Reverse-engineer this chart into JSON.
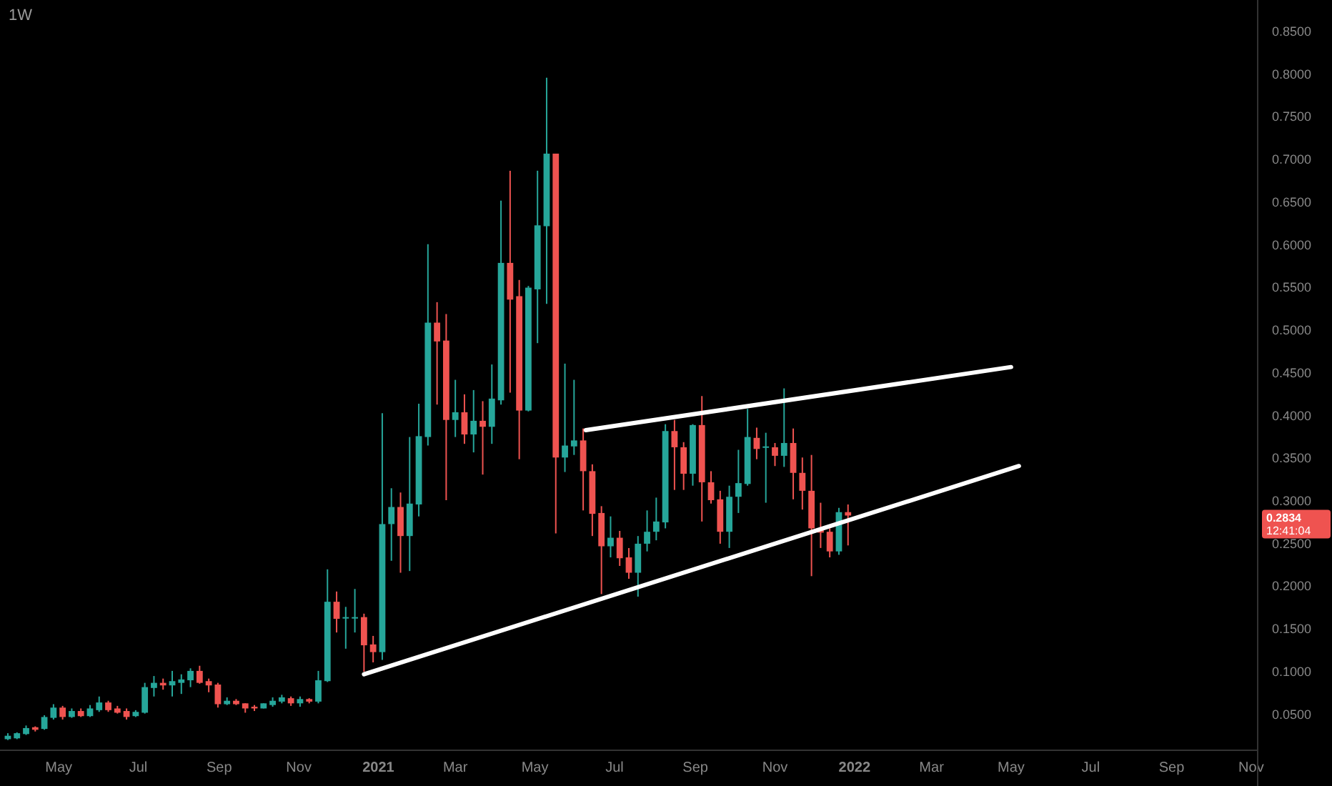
{
  "chart_data": {
    "type": "candlestick",
    "title": "1W",
    "x": [
      "2020-03-23",
      "2020-03-30",
      "2020-04-06",
      "2020-04-13",
      "2020-04-20",
      "2020-04-27",
      "2020-05-04",
      "2020-05-11",
      "2020-05-18",
      "2020-05-25",
      "2020-06-01",
      "2020-06-08",
      "2020-06-15",
      "2020-06-22",
      "2020-06-29",
      "2020-07-06",
      "2020-07-13",
      "2020-07-20",
      "2020-07-27",
      "2020-08-03",
      "2020-08-10",
      "2020-08-17",
      "2020-08-24",
      "2020-08-31",
      "2020-09-07",
      "2020-09-14",
      "2020-09-21",
      "2020-09-28",
      "2020-10-05",
      "2020-10-12",
      "2020-10-19",
      "2020-10-26",
      "2020-11-02",
      "2020-11-09",
      "2020-11-16",
      "2020-11-23",
      "2020-11-30",
      "2020-12-07",
      "2020-12-14",
      "2020-12-21",
      "2020-12-28",
      "2021-01-04",
      "2021-01-11",
      "2021-01-18",
      "2021-01-25",
      "2021-02-01",
      "2021-02-08",
      "2021-02-15",
      "2021-02-22",
      "2021-03-01",
      "2021-03-08",
      "2021-03-15",
      "2021-03-22",
      "2021-03-29",
      "2021-04-05",
      "2021-04-12",
      "2021-04-19",
      "2021-04-26",
      "2021-05-03",
      "2021-05-10",
      "2021-05-17",
      "2021-05-24",
      "2021-05-31",
      "2021-06-07",
      "2021-06-14",
      "2021-06-21",
      "2021-06-28",
      "2021-07-05",
      "2021-07-12",
      "2021-07-19",
      "2021-07-26",
      "2021-08-02",
      "2021-08-09",
      "2021-08-16",
      "2021-08-23",
      "2021-08-30",
      "2021-09-06",
      "2021-09-13",
      "2021-09-20",
      "2021-09-27",
      "2021-10-04",
      "2021-10-11",
      "2021-10-18",
      "2021-10-25",
      "2021-11-01",
      "2021-11-08",
      "2021-11-15",
      "2021-11-22",
      "2021-11-29",
      "2021-12-06",
      "2021-12-13",
      "2021-12-20",
      "2021-12-27"
    ],
    "ohlc": [
      [
        0.021,
        0.028,
        0.02,
        0.025
      ],
      [
        0.022,
        0.029,
        0.021,
        0.028
      ],
      [
        0.027,
        0.037,
        0.026,
        0.034
      ],
      [
        0.035,
        0.036,
        0.03,
        0.032
      ],
      [
        0.033,
        0.049,
        0.032,
        0.047
      ],
      [
        0.046,
        0.062,
        0.044,
        0.058
      ],
      [
        0.058,
        0.06,
        0.044,
        0.047
      ],
      [
        0.047,
        0.057,
        0.046,
        0.054
      ],
      [
        0.054,
        0.057,
        0.047,
        0.048
      ],
      [
        0.048,
        0.061,
        0.047,
        0.057
      ],
      [
        0.055,
        0.071,
        0.053,
        0.064
      ],
      [
        0.064,
        0.066,
        0.053,
        0.055
      ],
      [
        0.057,
        0.06,
        0.051,
        0.052
      ],
      [
        0.054,
        0.057,
        0.044,
        0.047
      ],
      [
        0.048,
        0.055,
        0.047,
        0.053
      ],
      [
        0.052,
        0.087,
        0.051,
        0.082
      ],
      [
        0.081,
        0.095,
        0.071,
        0.087
      ],
      [
        0.087,
        0.092,
        0.079,
        0.084
      ],
      [
        0.084,
        0.101,
        0.071,
        0.089
      ],
      [
        0.087,
        0.097,
        0.074,
        0.091
      ],
      [
        0.09,
        0.104,
        0.082,
        0.101
      ],
      [
        0.101,
        0.107,
        0.086,
        0.087
      ],
      [
        0.089,
        0.092,
        0.076,
        0.084
      ],
      [
        0.085,
        0.087,
        0.058,
        0.062
      ],
      [
        0.062,
        0.07,
        0.061,
        0.066
      ],
      [
        0.066,
        0.068,
        0.061,
        0.062
      ],
      [
        0.063,
        0.063,
        0.052,
        0.057
      ],
      [
        0.059,
        0.061,
        0.054,
        0.057
      ],
      [
        0.057,
        0.063,
        0.057,
        0.063
      ],
      [
        0.061,
        0.07,
        0.059,
        0.066
      ],
      [
        0.065,
        0.073,
        0.063,
        0.07
      ],
      [
        0.069,
        0.071,
        0.06,
        0.063
      ],
      [
        0.063,
        0.071,
        0.059,
        0.068
      ],
      [
        0.068,
        0.069,
        0.063,
        0.065
      ],
      [
        0.065,
        0.101,
        0.063,
        0.09
      ],
      [
        0.089,
        0.22,
        0.088,
        0.182
      ],
      [
        0.182,
        0.194,
        0.146,
        0.162
      ],
      [
        0.163,
        0.176,
        0.127,
        0.164
      ],
      [
        0.163,
        0.197,
        0.146,
        0.164
      ],
      [
        0.164,
        0.168,
        0.1,
        0.131
      ],
      [
        0.132,
        0.142,
        0.111,
        0.123
      ],
      [
        0.123,
        0.403,
        0.114,
        0.273
      ],
      [
        0.273,
        0.315,
        0.23,
        0.293
      ],
      [
        0.293,
        0.31,
        0.216,
        0.259
      ],
      [
        0.259,
        0.375,
        0.218,
        0.297
      ],
      [
        0.296,
        0.414,
        0.282,
        0.376
      ],
      [
        0.375,
        0.601,
        0.365,
        0.509
      ],
      [
        0.509,
        0.533,
        0.413,
        0.487
      ],
      [
        0.488,
        0.519,
        0.301,
        0.395
      ],
      [
        0.395,
        0.442,
        0.375,
        0.404
      ],
      [
        0.404,
        0.425,
        0.367,
        0.378
      ],
      [
        0.378,
        0.43,
        0.357,
        0.394
      ],
      [
        0.394,
        0.417,
        0.331,
        0.387
      ],
      [
        0.387,
        0.46,
        0.367,
        0.42
      ],
      [
        0.418,
        0.652,
        0.413,
        0.579
      ],
      [
        0.579,
        0.687,
        0.427,
        0.536
      ],
      [
        0.54,
        0.559,
        0.349,
        0.406
      ],
      [
        0.406,
        0.552,
        0.405,
        0.55
      ],
      [
        0.548,
        0.687,
        0.485,
        0.623
      ],
      [
        0.622,
        0.796,
        0.531,
        0.707
      ],
      [
        0.707,
        0.707,
        0.262,
        0.351
      ],
      [
        0.351,
        0.461,
        0.334,
        0.365
      ],
      [
        0.364,
        0.442,
        0.354,
        0.371
      ],
      [
        0.371,
        0.385,
        0.289,
        0.335
      ],
      [
        0.335,
        0.343,
        0.259,
        0.285
      ],
      [
        0.286,
        0.294,
        0.191,
        0.247
      ],
      [
        0.247,
        0.282,
        0.234,
        0.257
      ],
      [
        0.257,
        0.265,
        0.224,
        0.233
      ],
      [
        0.234,
        0.245,
        0.209,
        0.216
      ],
      [
        0.216,
        0.259,
        0.188,
        0.25
      ],
      [
        0.25,
        0.289,
        0.241,
        0.264
      ],
      [
        0.264,
        0.304,
        0.254,
        0.276
      ],
      [
        0.275,
        0.39,
        0.268,
        0.382
      ],
      [
        0.382,
        0.395,
        0.313,
        0.363
      ],
      [
        0.363,
        0.369,
        0.313,
        0.332
      ],
      [
        0.332,
        0.39,
        0.318,
        0.389
      ],
      [
        0.389,
        0.423,
        0.276,
        0.322
      ],
      [
        0.322,
        0.335,
        0.297,
        0.301
      ],
      [
        0.302,
        0.312,
        0.25,
        0.264
      ],
      [
        0.264,
        0.318,
        0.245,
        0.305
      ],
      [
        0.305,
        0.36,
        0.286,
        0.321
      ],
      [
        0.32,
        0.408,
        0.318,
        0.375
      ],
      [
        0.374,
        0.386,
        0.349,
        0.361
      ],
      [
        0.363,
        0.38,
        0.298,
        0.364
      ],
      [
        0.363,
        0.368,
        0.341,
        0.353
      ],
      [
        0.353,
        0.432,
        0.34,
        0.368
      ],
      [
        0.368,
        0.385,
        0.302,
        0.333
      ],
      [
        0.333,
        0.351,
        0.29,
        0.312
      ],
      [
        0.312,
        0.354,
        0.212,
        0.268
      ],
      [
        0.268,
        0.298,
        0.245,
        0.263
      ],
      [
        0.264,
        0.268,
        0.234,
        0.241
      ],
      [
        0.241,
        0.292,
        0.237,
        0.287
      ],
      [
        0.287,
        0.296,
        0.248,
        0.283
      ]
    ],
    "colors": [
      "#26a69a",
      "#26a69a",
      "#26a69a",
      "#ef5350",
      "#26a69a",
      "#26a69a",
      "#ef5350",
      "#26a69a",
      "#ef5350",
      "#26a69a",
      "#26a69a",
      "#ef5350",
      "#ef5350",
      "#ef5350",
      "#26a69a",
      "#26a69a",
      "#26a69a",
      "#ef5350",
      "#26a69a",
      "#26a69a",
      "#26a69a",
      "#ef5350",
      "#ef5350",
      "#ef5350",
      "#26a69a",
      "#ef5350",
      "#ef5350",
      "#ef5350",
      "#26a69a",
      "#26a69a",
      "#26a69a",
      "#ef5350",
      "#26a69a",
      "#ef5350",
      "#26a69a",
      "#26a69a",
      "#ef5350",
      "#26a69a",
      "#26a69a",
      "#ef5350",
      "#ef5350",
      "#26a69a",
      "#26a69a",
      "#ef5350",
      "#26a69a",
      "#26a69a",
      "#26a69a",
      "#ef5350",
      "#ef5350",
      "#26a69a",
      "#ef5350",
      "#26a69a",
      "#ef5350",
      "#26a69a",
      "#26a69a",
      "#ef5350",
      "#ef5350",
      "#26a69a",
      "#26a69a",
      "#26a69a",
      "#ef5350",
      "#26a69a",
      "#26a69a",
      "#ef5350",
      "#ef5350",
      "#ef5350",
      "#26a69a",
      "#ef5350",
      "#ef5350",
      "#26a69a",
      "#26a69a",
      "#26a69a",
      "#26a69a",
      "#ef5350",
      "#ef5350",
      "#26a69a",
      "#ef5350",
      "#ef5350",
      "#ef5350",
      "#26a69a",
      "#26a69a",
      "#26a69a",
      "#ef5350",
      "#26a69a",
      "#ef5350",
      "#26a69a",
      "#ef5350",
      "#ef5350",
      "#ef5350",
      "#ef5350",
      "#ef5350",
      "#26a69a",
      "#ef5350"
    ],
    "series": [
      {
        "type": "line",
        "x": [
          "2020-12-21",
          "2022-05-07"
        ],
        "values": [
          0.097,
          0.341
        ],
        "color": "#ffffff"
      },
      {
        "type": "line",
        "x": [
          "2021-06-09",
          "2022-05-01"
        ],
        "values": [
          0.383,
          0.457
        ],
        "color": "#ffffff"
      }
    ],
    "xlim": [
      "2020-03-17",
      "2022-11-06"
    ],
    "xticks": [
      {
        "value": "2020-05-01",
        "label": "May"
      },
      {
        "value": "2020-07-01",
        "label": "Jul"
      },
      {
        "value": "2020-09-01",
        "label": "Sep"
      },
      {
        "value": "2020-11-01",
        "label": "Nov"
      },
      {
        "value": "2021-01-01",
        "label": "2021"
      },
      {
        "value": "2021-03-01",
        "label": "Mar"
      },
      {
        "value": "2021-05-01",
        "label": "May"
      },
      {
        "value": "2021-07-01",
        "label": "Jul"
      },
      {
        "value": "2021-09-01",
        "label": "Sep"
      },
      {
        "value": "2021-11-01",
        "label": "Nov"
      },
      {
        "value": "2022-01-01",
        "label": "2022"
      },
      {
        "value": "2022-03-01",
        "label": "Mar"
      },
      {
        "value": "2022-05-01",
        "label": "May"
      },
      {
        "value": "2022-07-01",
        "label": "Jul"
      },
      {
        "value": "2022-09-01",
        "label": "Sep"
      },
      {
        "value": "2022-11-01",
        "label": "Nov"
      }
    ],
    "ylim": [
      0.008,
      0.887
    ],
    "yticks": [
      {
        "value": 0.05,
        "label": "0.0500"
      },
      {
        "value": 0.1,
        "label": "0.1000"
      },
      {
        "value": 0.15,
        "label": "0.1500"
      },
      {
        "value": 0.2,
        "label": "0.2000"
      },
      {
        "value": 0.25,
        "label": "0.2500"
      },
      {
        "value": 0.3,
        "label": "0.3000"
      },
      {
        "value": 0.35,
        "label": "0.3500"
      },
      {
        "value": 0.4,
        "label": "0.4000"
      },
      {
        "value": 0.45,
        "label": "0.4500"
      },
      {
        "value": 0.5,
        "label": "0.5000"
      },
      {
        "value": 0.55,
        "label": "0.5500"
      },
      {
        "value": 0.6,
        "label": "0.6000"
      },
      {
        "value": 0.65,
        "label": "0.6500"
      },
      {
        "value": 0.7,
        "label": "0.7000"
      },
      {
        "value": 0.75,
        "label": "0.7500"
      },
      {
        "value": 0.8,
        "label": "0.8000"
      },
      {
        "value": 0.85,
        "label": "0.8500"
      }
    ],
    "annotations": [
      "0.2834",
      "12:41:04"
    ],
    "grid": false
  }
}
